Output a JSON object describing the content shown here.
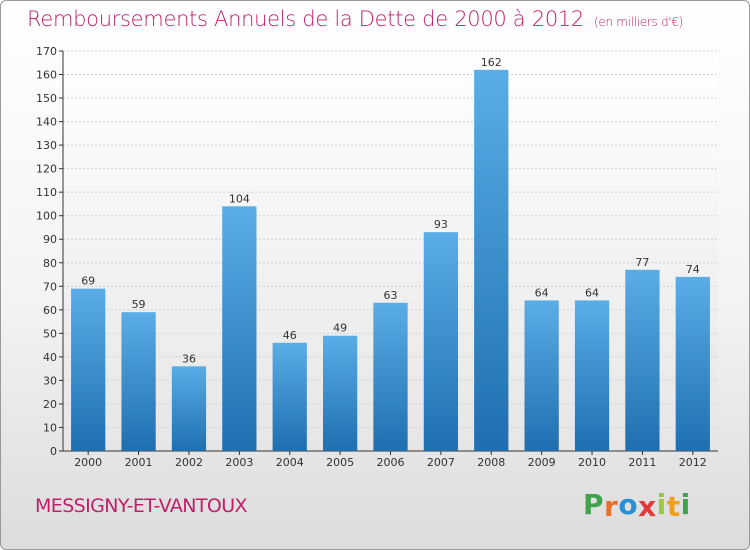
{
  "title": "Remboursements Annuels de la Dette de 2000 à 2012",
  "subtitle": "(en milliers d'€)",
  "commune": "MESSIGNY-ET-VANTOUX",
  "logo": {
    "letters": [
      "P",
      "r",
      "o",
      "x",
      "i",
      "t",
      "i"
    ],
    "colors": [
      "#3fa34d",
      "#e8702a",
      "#2b8fd6",
      "#e23a3a",
      "#9cc93b",
      "#f0a020",
      "#3fa34d"
    ]
  },
  "colors": {
    "bar_top": "#5aade6",
    "bar_bottom": "#1f6fb0",
    "title": "#c0206a",
    "axis": "#333333"
  },
  "chart_data": {
    "type": "bar",
    "categories": [
      "2000",
      "2001",
      "2002",
      "2003",
      "2004",
      "2005",
      "2006",
      "2007",
      "2008",
      "2009",
      "2010",
      "2011",
      "2012"
    ],
    "values": [
      69,
      59,
      36,
      104,
      46,
      49,
      63,
      93,
      162,
      64,
      64,
      77,
      74
    ],
    "ylim": [
      0,
      170
    ],
    "yticks": [
      0,
      10,
      20,
      30,
      40,
      50,
      60,
      70,
      80,
      90,
      100,
      110,
      120,
      130,
      140,
      150,
      160,
      170
    ],
    "grid": true,
    "data_labels": true
  }
}
